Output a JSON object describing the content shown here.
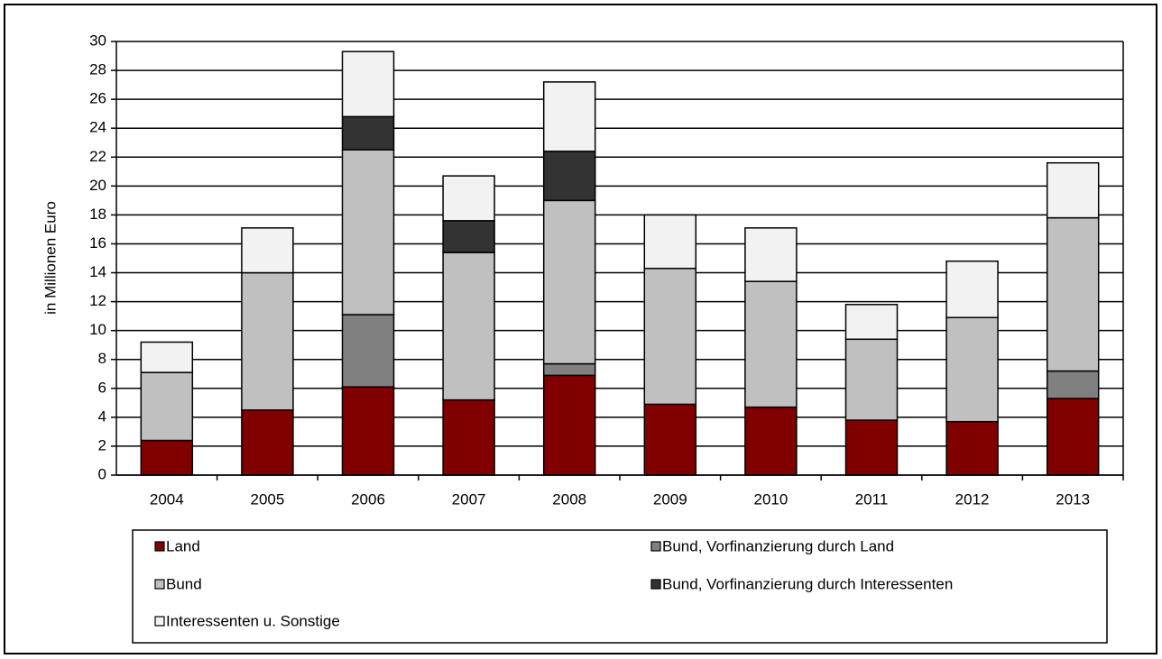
{
  "chart_data": {
    "type": "stacked_bar",
    "y_label": "in Millionen Euro",
    "categories": [
      "2004",
      "2005",
      "2006",
      "2007",
      "2008",
      "2009",
      "2010",
      "2011",
      "2012",
      "2013"
    ],
    "series": [
      {
        "name": "Land",
        "color": "#800000",
        "values": [
          2.4,
          4.5,
          6.1,
          5.2,
          6.9,
          4.9,
          4.7,
          3.8,
          3.7,
          5.3
        ]
      },
      {
        "name": "Bund, Vorfinanzierung durch Land",
        "color": "#808080",
        "values": [
          0,
          0,
          5.0,
          0,
          0.8,
          0,
          0,
          0,
          0,
          1.9
        ]
      },
      {
        "name": "Bund",
        "color": "#c0c0c0",
        "values": [
          4.7,
          9.5,
          11.4,
          10.2,
          11.3,
          9.4,
          8.7,
          5.6,
          7.2,
          10.6
        ]
      },
      {
        "name": "Bund, Vorfinanzierung durch Interessenten",
        "color": "#333333",
        "values": [
          0,
          0,
          2.3,
          2.2,
          3.4,
          0,
          0,
          0,
          0,
          0
        ]
      },
      {
        "name": "Interessenten u. Sonstige",
        "color": "#f2f2f2",
        "values": [
          2.1,
          3.1,
          4.5,
          3.1,
          4.8,
          3.7,
          3.7,
          2.4,
          3.9,
          3.8
        ]
      }
    ],
    "ylim": [
      0,
      30
    ],
    "yticks": [
      0,
      2,
      4,
      6,
      8,
      10,
      12,
      14,
      16,
      18,
      20,
      22,
      24,
      26,
      28,
      30
    ],
    "grid": true,
    "legend": "bottom"
  }
}
